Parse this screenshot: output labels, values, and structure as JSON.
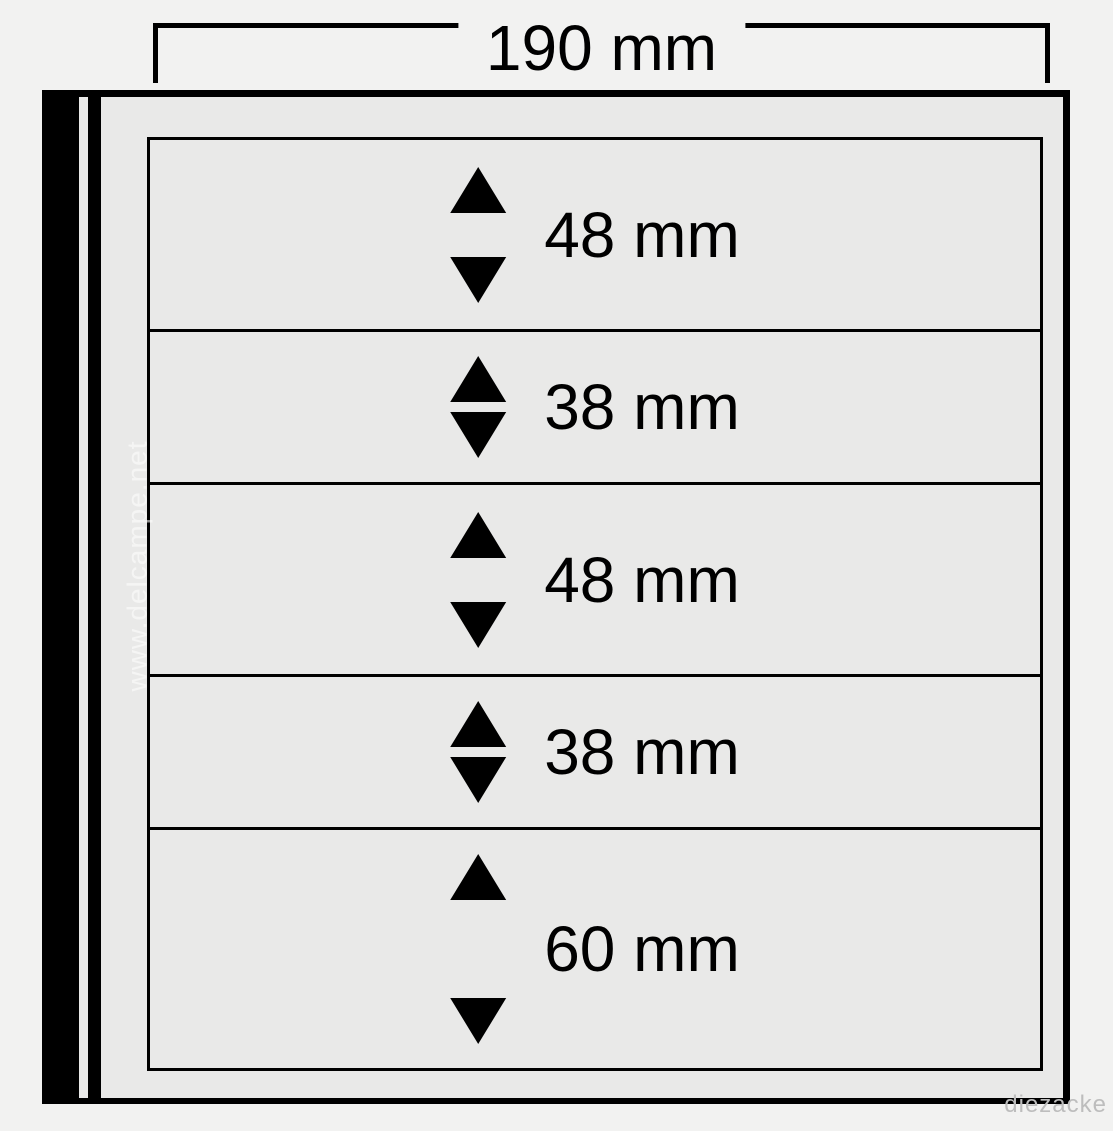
{
  "diagram": {
    "type": "technical-dimension-diagram",
    "background_color": "#f2f2f1",
    "sheet_color": "#e9e9e8",
    "line_color": "#000000",
    "text_color": "#000000",
    "font_size_pt": 48,
    "width_label": "190 mm",
    "width_mm": 190,
    "pockets": [
      {
        "label": "48 mm",
        "height_mm": 48,
        "render_h": 195,
        "arrow_gap": 44
      },
      {
        "label": "38 mm",
        "height_mm": 38,
        "render_h": 156,
        "arrow_gap": 10
      },
      {
        "label": "48 mm",
        "height_mm": 48,
        "render_h": 195,
        "arrow_gap": 44
      },
      {
        "label": "38 mm",
        "height_mm": 38,
        "render_h": 156,
        "arrow_gap": 10
      },
      {
        "label": "60 mm",
        "height_mm": 60,
        "render_h": 244,
        "arrow_gap": 98
      }
    ]
  },
  "watermarks": {
    "left": "www.delcampe.net",
    "right": "diezacke"
  }
}
